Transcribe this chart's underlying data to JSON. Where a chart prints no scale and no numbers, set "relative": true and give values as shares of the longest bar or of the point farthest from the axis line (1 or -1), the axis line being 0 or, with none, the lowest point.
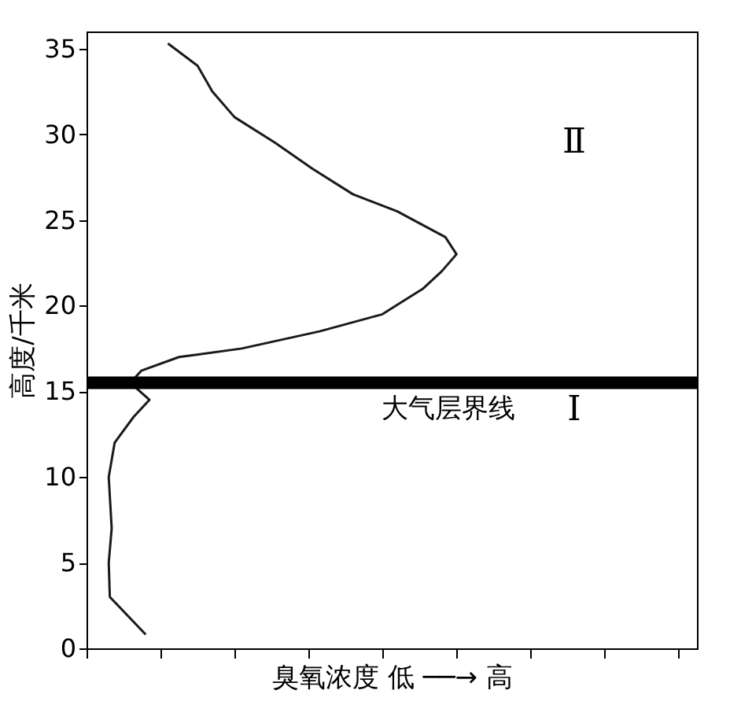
{
  "chart_data": {
    "type": "line",
    "orientation": "horizontal",
    "relative": true,
    "xlabel": "臭氧浓度  低 ──→ 高",
    "ylabel": "高度/千米",
    "ylim": [
      0,
      36
    ],
    "yticks": [
      0,
      5,
      10,
      15,
      20,
      25,
      30,
      35
    ],
    "x": [
      0.8,
      3,
      5,
      7,
      10,
      12,
      13.5,
      14.5,
      15.5,
      16.2,
      17,
      17.5,
      18.5,
      19.5,
      21,
      22,
      23,
      24,
      25.5,
      26.5,
      28,
      29.5,
      31,
      32.5,
      34,
      35.3
    ],
    "values": [
      0.16,
      0.063,
      0.06,
      0.068,
      0.06,
      0.076,
      0.127,
      0.17,
      0.118,
      0.148,
      0.25,
      0.42,
      0.63,
      0.8,
      0.91,
      0.96,
      1,
      0.97,
      0.84,
      0.72,
      0.61,
      0.51,
      0.4,
      0.34,
      0.3,
      0.22
    ],
    "color": "#1a1a1a",
    "ref_lines": [
      {
        "axis": "y",
        "value": 15.5,
        "label": "大气层界线",
        "color": "#000000"
      }
    ],
    "annotations": [
      "Ⅱ",
      "Ⅰ"
    ]
  }
}
